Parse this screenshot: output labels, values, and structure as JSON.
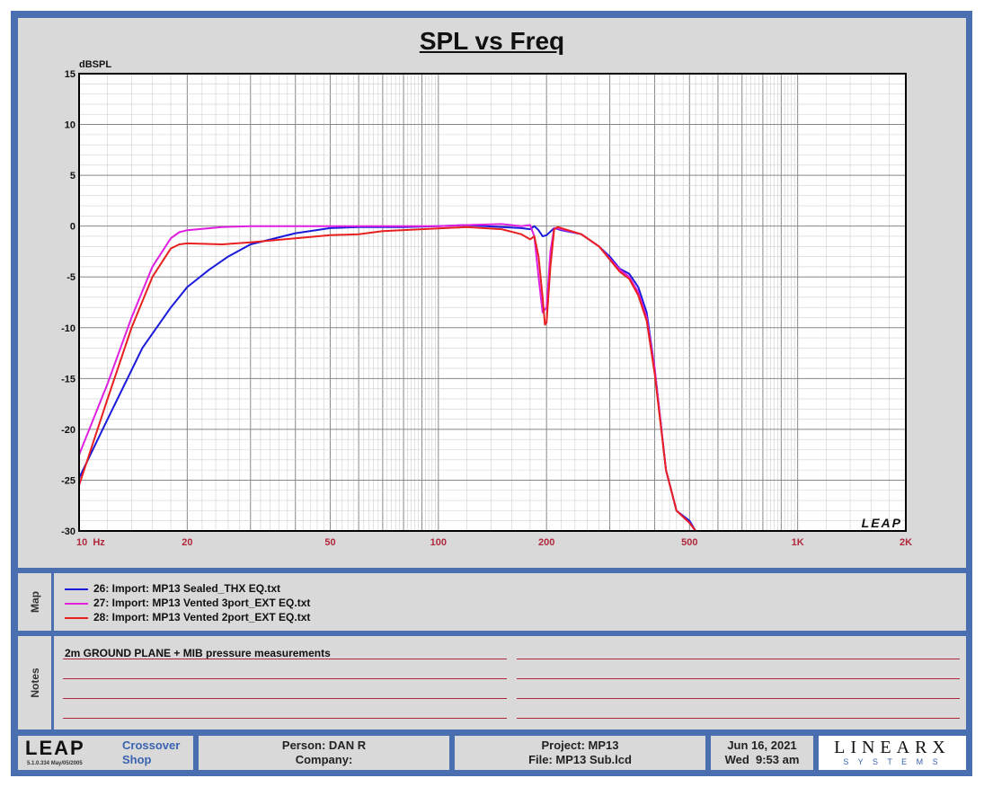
{
  "chart_data": {
    "type": "line",
    "title": "SPL vs Freq",
    "ylabel": "dBSPL",
    "xscale": "log",
    "xlim": [
      10,
      2000
    ],
    "ylim": [
      -30,
      15
    ],
    "grid": true,
    "yticks": [
      "15",
      "10",
      "5",
      "0",
      "-5",
      "-10",
      "-15",
      "-20",
      "-25",
      "-30"
    ],
    "xticks": [
      {
        "v": 10,
        "label": "10  Hz"
      },
      {
        "v": 20,
        "label": "20"
      },
      {
        "v": 50,
        "label": "50"
      },
      {
        "v": 100,
        "label": "100"
      },
      {
        "v": 200,
        "label": "200"
      },
      {
        "v": 500,
        "label": "500"
      },
      {
        "v": 1000,
        "label": "1K"
      },
      {
        "v": 2000,
        "label": "2K"
      }
    ],
    "series": [
      {
        "name": "26: Import: MP13 Sealed_THX EQ.txt",
        "color": "#1a1adc",
        "points": [
          [
            10,
            -24.8
          ],
          [
            12,
            -19
          ],
          [
            15,
            -12
          ],
          [
            18,
            -8
          ],
          [
            20,
            -6
          ],
          [
            23,
            -4.3
          ],
          [
            26,
            -3
          ],
          [
            30,
            -1.8
          ],
          [
            40,
            -0.7
          ],
          [
            50,
            -0.2
          ],
          [
            60,
            -0.1
          ],
          [
            80,
            -0.1
          ],
          [
            100,
            0
          ],
          [
            120,
            0.1
          ],
          [
            150,
            -0.1
          ],
          [
            170,
            -0.2
          ],
          [
            180,
            -0.3
          ],
          [
            185,
            0
          ],
          [
            190,
            -0.4
          ],
          [
            195,
            -1
          ],
          [
            200,
            -0.9
          ],
          [
            210,
            -0.2
          ],
          [
            220,
            -0.4
          ],
          [
            250,
            -0.8
          ],
          [
            280,
            -2
          ],
          [
            300,
            -3
          ],
          [
            320,
            -4.2
          ],
          [
            340,
            -4.7
          ],
          [
            360,
            -6
          ],
          [
            380,
            -8.5
          ],
          [
            400,
            -14
          ],
          [
            430,
            -24
          ],
          [
            460,
            -28
          ],
          [
            500,
            -29
          ],
          [
            520,
            -30
          ],
          [
            2000,
            -30
          ]
        ]
      },
      {
        "name": "27: Import: MP13 Vented 3port_EXT EQ.txt",
        "color": "#e020e0",
        "points": [
          [
            10,
            -22.5
          ],
          [
            12,
            -15.5
          ],
          [
            14,
            -9
          ],
          [
            16,
            -4
          ],
          [
            18,
            -1.2
          ],
          [
            19,
            -0.6
          ],
          [
            20,
            -0.4
          ],
          [
            25,
            -0.1
          ],
          [
            30,
            0
          ],
          [
            50,
            0
          ],
          [
            80,
            0
          ],
          [
            100,
            0
          ],
          [
            120,
            0.1
          ],
          [
            150,
            0.2
          ],
          [
            170,
            0
          ],
          [
            180,
            0.1
          ],
          [
            185,
            -1
          ],
          [
            190,
            -5
          ],
          [
            195,
            -8.5
          ],
          [
            200,
            -8
          ],
          [
            205,
            -2.5
          ],
          [
            210,
            -0.2
          ],
          [
            220,
            -0.3
          ],
          [
            250,
            -0.8
          ],
          [
            280,
            -2
          ],
          [
            300,
            -3.2
          ],
          [
            320,
            -4.3
          ],
          [
            340,
            -5
          ],
          [
            360,
            -6.5
          ],
          [
            380,
            -9
          ],
          [
            400,
            -14
          ],
          [
            430,
            -24
          ],
          [
            460,
            -28
          ],
          [
            500,
            -29.2
          ],
          [
            520,
            -30
          ],
          [
            2000,
            -30
          ]
        ]
      },
      {
        "name": "28: Import: MP13 Vented 2port_EXT EQ.txt",
        "color": "#e82020",
        "points": [
          [
            10,
            -25.5
          ],
          [
            12,
            -17
          ],
          [
            14,
            -10
          ],
          [
            16,
            -5
          ],
          [
            18,
            -2.2
          ],
          [
            19,
            -1.8
          ],
          [
            20,
            -1.7
          ],
          [
            25,
            -1.8
          ],
          [
            30,
            -1.6
          ],
          [
            40,
            -1.2
          ],
          [
            50,
            -0.9
          ],
          [
            60,
            -0.8
          ],
          [
            70,
            -0.5
          ],
          [
            90,
            -0.3
          ],
          [
            120,
            -0.1
          ],
          [
            150,
            -0.3
          ],
          [
            170,
            -0.8
          ],
          [
            180,
            -1.3
          ],
          [
            185,
            -1
          ],
          [
            190,
            -3
          ],
          [
            195,
            -7
          ],
          [
            198,
            -9.7
          ],
          [
            200,
            -9.5
          ],
          [
            205,
            -4
          ],
          [
            210,
            -0.3
          ],
          [
            215,
            -0.1
          ],
          [
            220,
            -0.2
          ],
          [
            250,
            -0.8
          ],
          [
            280,
            -2
          ],
          [
            300,
            -3.3
          ],
          [
            320,
            -4.5
          ],
          [
            340,
            -5.2
          ],
          [
            360,
            -6.8
          ],
          [
            380,
            -9.3
          ],
          [
            400,
            -14.5
          ],
          [
            430,
            -24
          ],
          [
            460,
            -28
          ],
          [
            500,
            -29.2
          ],
          [
            520,
            -30
          ],
          [
            2000,
            -30
          ]
        ]
      }
    ],
    "watermark": "LEAP"
  },
  "map": {
    "label": "Map",
    "items": [
      {
        "text": "26: Import: MP13 Sealed_THX EQ.txt",
        "color": "#1a1adc"
      },
      {
        "text": "27: Import: MP13 Vented 3port_EXT EQ.txt",
        "color": "#e020e0"
      },
      {
        "text": "28: Import: MP13 Vented 2port_EXT EQ.txt",
        "color": "#e82020"
      }
    ]
  },
  "notes": {
    "label": "Notes",
    "text": "2m GROUND PLANE + MIB pressure measurements"
  },
  "footer": {
    "logo": "LEAP",
    "version": "5.1.0.334  May/05/2005",
    "product_line1": "Crossover",
    "product_line2": "Shop",
    "person": "Person: DAN R",
    "company": "Company:",
    "project": "Project: MP13",
    "file": "File: MP13 Sub.lcd",
    "date": "Jun 16, 2021",
    "time": "Wed  9:53 am",
    "brand": "LINEARX",
    "brand_sub": "S Y S T E M S"
  }
}
